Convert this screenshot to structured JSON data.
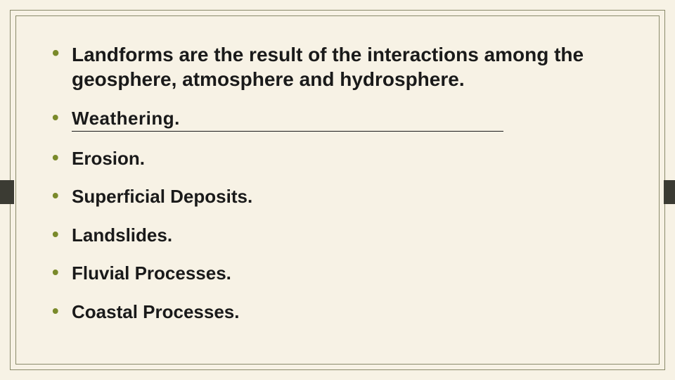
{
  "slide": {
    "background_color": "#f7f2e5",
    "border_color": "#8a8a6a",
    "tab_color": "#3b3b33",
    "bullet_color": "#7a8a2a",
    "text_color": "#1a1a1a",
    "font_family": "Arial",
    "font_weight": 700,
    "bullets": [
      {
        "text": "Landforms are the result of the interactions among the geosphere, atmosphere and hydrosphere.",
        "fontsize": 28,
        "underlined": false
      },
      {
        "text": "Weathering.",
        "fontsize": 26,
        "underlined": true
      },
      {
        "text": "Erosion.",
        "fontsize": 26,
        "underlined": false
      },
      {
        "text": "Superficial Deposits.",
        "fontsize": 26,
        "underlined": false
      },
      {
        "text": "Landslides.",
        "fontsize": 26,
        "underlined": false
      },
      {
        "text": "Fluvial Processes.",
        "fontsize": 26,
        "underlined": false
      },
      {
        "text": "Coastal Processes.",
        "fontsize": 26,
        "underlined": false
      }
    ]
  }
}
